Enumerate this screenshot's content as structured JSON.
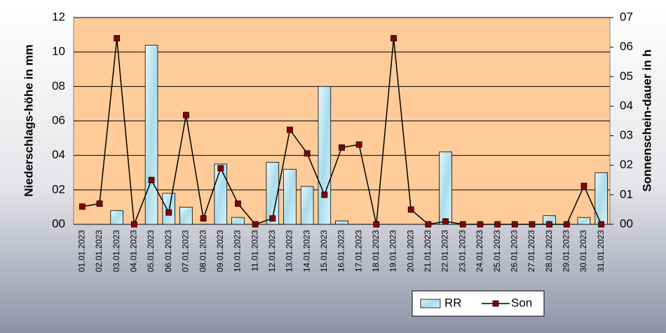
{
  "chart_data": {
    "type": "bar_line",
    "categories": [
      "01.01.2023",
      "02.01.2023",
      "03.01.2023",
      "04.01.2023",
      "05.01.2023",
      "06.01.2023",
      "07.01.2023",
      "08.01.2023",
      "09.01.2023",
      "10.01.2023",
      "11.01.2023",
      "12.01.2023",
      "13.01.2023",
      "14.01.2023",
      "15.01.2023",
      "16.01.2023",
      "17.01.2023",
      "18.01.2023",
      "19.01.2023",
      "20.01.2023",
      "21.01.2023",
      "22.01.2023",
      "23.01.2023",
      "24.01.2023",
      "25.01.2023",
      "26.01.2023",
      "27.01.2023",
      "28.01.2023",
      "29.01.2023",
      "30.01.2023",
      "31.01.2023"
    ],
    "series": [
      {
        "name": "RR",
        "type": "bar",
        "color": "#bfe6f2",
        "values": [
          0,
          0,
          0.8,
          0,
          10.4,
          1.8,
          1.0,
          0,
          3.5,
          0.4,
          0,
          3.6,
          3.2,
          2.2,
          8.0,
          0.2,
          0,
          0,
          0,
          0,
          0,
          4.2,
          0,
          0,
          0,
          0,
          0,
          0.5,
          0,
          0.4,
          3.0
        ]
      },
      {
        "name": "Son",
        "type": "line",
        "axis": "y2",
        "color": "#000000",
        "marker_color": "#8b0000",
        "values": [
          0.6,
          0.7,
          6.3,
          0,
          1.5,
          0.4,
          3.7,
          0.2,
          1.9,
          0.7,
          0,
          0.2,
          3.2,
          2.4,
          1.0,
          2.6,
          2.7,
          0,
          6.3,
          0.5,
          0,
          0.1,
          0,
          0,
          0,
          0,
          0,
          0,
          0,
          1.3,
          0
        ]
      }
    ],
    "ylabel": "Niederschlags-höhe in mm",
    "y2label": "Sonnenschein-dauer in h",
    "ylim": [
      0,
      12
    ],
    "yticks": [
      {
        "value": 0,
        "label": "00"
      },
      {
        "value": 2,
        "label": "02"
      },
      {
        "value": 4,
        "label": "04"
      },
      {
        "value": 6,
        "label": "06"
      },
      {
        "value": 8,
        "label": "08"
      },
      10,
      12
    ],
    "y2lim": [
      0,
      7
    ],
    "y2ticks": [
      {
        "value": 0,
        "label": "00"
      },
      {
        "value": 1,
        "label": "01"
      },
      {
        "value": 2,
        "label": "02"
      },
      {
        "value": 3,
        "label": "03"
      },
      {
        "value": 4,
        "label": "04"
      },
      {
        "value": 5,
        "label": "05"
      },
      {
        "value": 6,
        "label": "06"
      },
      {
        "value": 7,
        "label": "07"
      }
    ],
    "grid": true,
    "plot_background": "#ffcc99",
    "legend": "bottom"
  }
}
